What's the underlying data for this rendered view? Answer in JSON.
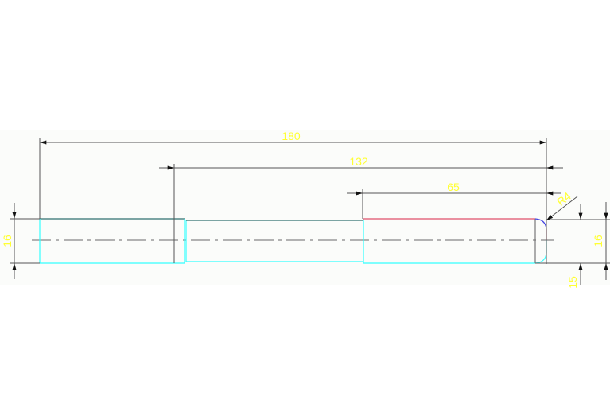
{
  "drawing": {
    "dimensions": {
      "overall_length": "180",
      "length_132": "132",
      "length_65": "65",
      "left_diameter": "16",
      "right_diameter": "16",
      "right_step": "15",
      "fillet_radius": "R4"
    },
    "colors": {
      "background": "#fbfcfa",
      "dimension_line": "#555555",
      "dimension_text": "#ffff33",
      "outline_cyan": "#33ffff",
      "outline_dark": "#2f6f6f",
      "outline_red": "#e0506a",
      "fillet_blue": "#4040e0",
      "centerline": "#999999"
    }
  }
}
